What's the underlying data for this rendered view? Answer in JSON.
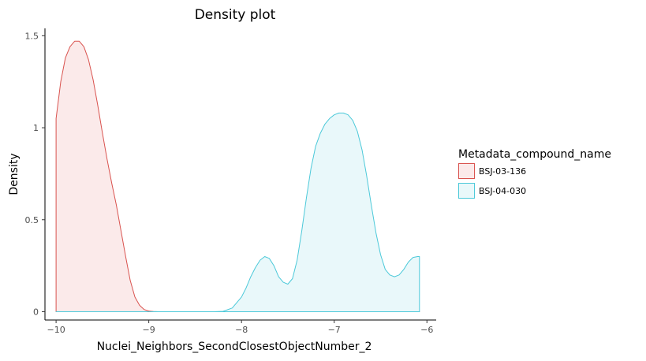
{
  "chart_data": {
    "type": "area",
    "title": "Density plot",
    "xlabel": "Nuclei_Neighbors_SecondClosestObjectNumber_2",
    "ylabel": "Density",
    "xlim": [
      -10.12,
      -5.9
    ],
    "ylim": [
      -0.045,
      1.54
    ],
    "x_ticks": [
      -10,
      -9,
      -8,
      -7,
      -6
    ],
    "x_tick_labels": [
      "−10",
      "−9",
      "−8",
      "−7",
      "−6"
    ],
    "y_ticks": [
      0,
      0.5,
      1,
      1.5
    ],
    "y_tick_labels": [
      "0",
      "0.5",
      "1",
      "1.5"
    ],
    "grid": false,
    "legend": {
      "title": "Metadata_compound_name",
      "position": "right"
    },
    "series": [
      {
        "name": "BSJ-03-136",
        "color": "#d9534f",
        "fill": "#fbeaea",
        "x": [
          -10.0,
          -9.95,
          -9.9,
          -9.85,
          -9.8,
          -9.75,
          -9.7,
          -9.65,
          -9.6,
          -9.55,
          -9.5,
          -9.45,
          -9.4,
          -9.35,
          -9.3,
          -9.25,
          -9.2,
          -9.15,
          -9.1,
          -9.05,
          -9.0,
          -8.95,
          -8.9,
          -8.8,
          -8.5,
          -8.0,
          -7.5,
          -7.0,
          -6.5,
          -6.08
        ],
        "y": [
          1.05,
          1.25,
          1.38,
          1.44,
          1.47,
          1.47,
          1.44,
          1.37,
          1.26,
          1.12,
          0.97,
          0.83,
          0.7,
          0.58,
          0.44,
          0.3,
          0.17,
          0.08,
          0.035,
          0.012,
          0.004,
          0.001,
          0.0,
          0.0,
          0.0,
          0.0,
          0.0,
          0.0,
          0.0,
          0.0
        ]
      },
      {
        "name": "BSJ-04-030",
        "color": "#4cc9d9",
        "fill": "#e9f8fa",
        "x": [
          -10.0,
          -9.0,
          -8.5,
          -8.3,
          -8.2,
          -8.1,
          -8.0,
          -7.95,
          -7.9,
          -7.85,
          -7.8,
          -7.75,
          -7.7,
          -7.65,
          -7.6,
          -7.55,
          -7.5,
          -7.45,
          -7.4,
          -7.35,
          -7.3,
          -7.25,
          -7.2,
          -7.15,
          -7.1,
          -7.05,
          -7.0,
          -6.95,
          -6.9,
          -6.85,
          -6.8,
          -6.75,
          -6.7,
          -6.65,
          -6.6,
          -6.55,
          -6.5,
          -6.45,
          -6.4,
          -6.35,
          -6.3,
          -6.25,
          -6.2,
          -6.15,
          -6.1,
          -6.08
        ],
        "y": [
          0.0,
          0.0,
          0.0,
          0.0,
          0.002,
          0.02,
          0.08,
          0.13,
          0.19,
          0.24,
          0.28,
          0.3,
          0.29,
          0.25,
          0.19,
          0.16,
          0.15,
          0.18,
          0.28,
          0.44,
          0.62,
          0.78,
          0.9,
          0.97,
          1.02,
          1.05,
          1.07,
          1.08,
          1.08,
          1.07,
          1.04,
          0.98,
          0.88,
          0.74,
          0.58,
          0.43,
          0.31,
          0.23,
          0.2,
          0.19,
          0.2,
          0.23,
          0.27,
          0.295,
          0.3,
          0.3
        ]
      }
    ]
  }
}
